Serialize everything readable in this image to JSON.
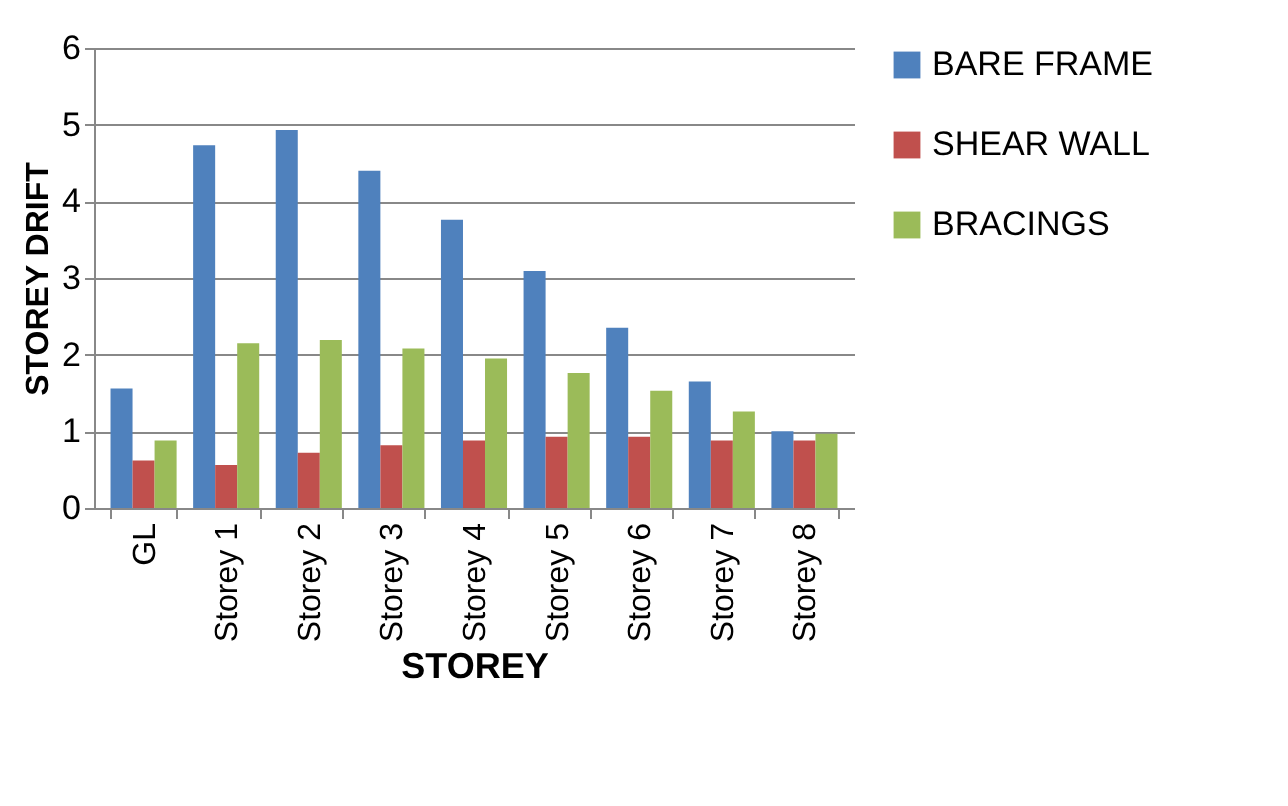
{
  "chart_data": {
    "type": "bar",
    "xlabel": "STOREY",
    "ylabel": "STOREY DRIFT",
    "categories": [
      "GL",
      "Storey 1",
      "Storey 2",
      "Storey 3",
      "Storey 4",
      "Storey 5",
      "Storey 6",
      "Storey 7",
      "Storey 8"
    ],
    "series": [
      {
        "name": "BARE FRAME",
        "color": "#4f81bd",
        "values": [
          1.56,
          4.73,
          4.93,
          4.4,
          3.76,
          3.09,
          2.35,
          1.65,
          1.0
        ]
      },
      {
        "name": "SHEAR WALL",
        "color": "#c0504d",
        "values": [
          0.62,
          0.56,
          0.72,
          0.82,
          0.88,
          0.93,
          0.93,
          0.88,
          0.88
        ]
      },
      {
        "name": "BRACINGS",
        "color": "#9bbb59",
        "values": [
          0.88,
          2.15,
          2.19,
          2.08,
          1.95,
          1.76,
          1.53,
          1.26,
          0.97
        ]
      }
    ],
    "ylim": [
      0,
      6
    ],
    "yticks": [
      0,
      1,
      2,
      3,
      4,
      5,
      6
    ],
    "grid": "y",
    "legend": "right"
  }
}
